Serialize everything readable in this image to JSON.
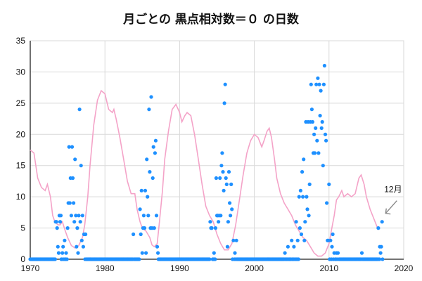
{
  "chart_data": {
    "type": "scatter",
    "title": "月ごとの 黒点相対数＝０ の日数",
    "xlabel": "",
    "ylabel": "",
    "xlim": [
      1970,
      2020
    ],
    "ylim": [
      0,
      35
    ],
    "xticks": [
      1970,
      1980,
      1990,
      2000,
      2010,
      2020
    ],
    "yticks": [
      0,
      5,
      10,
      15,
      20,
      25,
      30,
      35
    ],
    "grid": true,
    "colors": {
      "points": "#1e90ff",
      "line": "#f4a3c8",
      "grid": "#d9d9d9",
      "annotation": "#888888"
    },
    "annotation": {
      "text": "12月",
      "x": 2017.2,
      "y": 6
    },
    "series": [
      {
        "type": "scatter",
        "points": [
          [
            1973.4,
            6
          ],
          [
            1973.5,
            6
          ],
          [
            1973.6,
            5
          ],
          [
            1973.7,
            2
          ],
          [
            1973.8,
            1
          ],
          [
            1973.9,
            7
          ],
          [
            1974.0,
            6
          ],
          [
            1974.1,
            7
          ],
          [
            1974.3,
            1
          ],
          [
            1974.4,
            2
          ],
          [
            1974.6,
            3
          ],
          [
            1974.8,
            1
          ],
          [
            1975.0,
            5
          ],
          [
            1975.1,
            9
          ],
          [
            1975.2,
            18
          ],
          [
            1975.3,
            9
          ],
          [
            1975.4,
            13
          ],
          [
            1975.5,
            7
          ],
          [
            1975.6,
            18
          ],
          [
            1975.7,
            13
          ],
          [
            1975.8,
            9
          ],
          [
            1975.9,
            6
          ],
          [
            1976.0,
            16
          ],
          [
            1976.1,
            7
          ],
          [
            1976.2,
            2
          ],
          [
            1976.3,
            5
          ],
          [
            1976.4,
            1
          ],
          [
            1976.5,
            7
          ],
          [
            1976.6,
            24
          ],
          [
            1976.7,
            6
          ],
          [
            1976.8,
            15
          ],
          [
            1976.9,
            3
          ],
          [
            1977.0,
            7
          ],
          [
            1977.1,
            2
          ],
          [
            1977.2,
            4
          ],
          [
            1977.4,
            4
          ],
          [
            1983.8,
            4
          ],
          [
            1984.7,
            8
          ],
          [
            1984.8,
            4
          ],
          [
            1984.9,
            11
          ],
          [
            1985.0,
            1
          ],
          [
            1985.1,
            5
          ],
          [
            1985.2,
            7
          ],
          [
            1985.3,
            5
          ],
          [
            1985.4,
            11
          ],
          [
            1985.5,
            1
          ],
          [
            1985.6,
            16
          ],
          [
            1985.7,
            10
          ],
          [
            1985.8,
            7
          ],
          [
            1985.9,
            24
          ],
          [
            1986.0,
            14
          ],
          [
            1986.1,
            5
          ],
          [
            1986.2,
            26
          ],
          [
            1986.3,
            5
          ],
          [
            1986.4,
            13
          ],
          [
            1986.5,
            18
          ],
          [
            1986.6,
            5
          ],
          [
            1986.7,
            17
          ],
          [
            1986.8,
            19
          ],
          [
            1986.9,
            7
          ],
          [
            1987.0,
            2
          ],
          [
            1987.1,
            1
          ],
          [
            1994.1,
            6
          ],
          [
            1994.2,
            5
          ],
          [
            1994.3,
            5
          ],
          [
            1994.6,
            1
          ],
          [
            1994.8,
            5
          ],
          [
            1994.9,
            13
          ],
          [
            1995.0,
            7
          ],
          [
            1995.1,
            7
          ],
          [
            1995.2,
            6
          ],
          [
            1995.3,
            7
          ],
          [
            1995.4,
            13
          ],
          [
            1995.5,
            7
          ],
          [
            1995.6,
            15
          ],
          [
            1995.7,
            17
          ],
          [
            1995.8,
            14
          ],
          [
            1995.9,
            11
          ],
          [
            1996.0,
            25
          ],
          [
            1996.1,
            28
          ],
          [
            1996.2,
            13
          ],
          [
            1996.3,
            12
          ],
          [
            1996.4,
            2
          ],
          [
            1996.5,
            6
          ],
          [
            1996.6,
            14
          ],
          [
            1996.7,
            9
          ],
          [
            1996.8,
            7
          ],
          [
            1996.9,
            12
          ],
          [
            1997.0,
            8
          ],
          [
            1997.2,
            3
          ],
          [
            1997.4,
            1
          ],
          [
            1997.6,
            3
          ],
          [
            2004.1,
            1
          ],
          [
            2004.5,
            2
          ],
          [
            2005.0,
            3
          ],
          [
            2005.3,
            2
          ],
          [
            2005.6,
            6
          ],
          [
            2005.8,
            3
          ],
          [
            2006.0,
            10
          ],
          [
            2006.1,
            5
          ],
          [
            2006.2,
            11
          ],
          [
            2006.3,
            4
          ],
          [
            2006.4,
            14
          ],
          [
            2006.5,
            10
          ],
          [
            2006.6,
            16
          ],
          [
            2006.7,
            3
          ],
          [
            2006.8,
            6
          ],
          [
            2006.9,
            22
          ],
          [
            2007.0,
            10
          ],
          [
            2007.1,
            8
          ],
          [
            2007.2,
            22
          ],
          [
            2007.3,
            7
          ],
          [
            2007.4,
            12
          ],
          [
            2007.5,
            22
          ],
          [
            2007.6,
            28
          ],
          [
            2007.7,
            24
          ],
          [
            2007.8,
            22
          ],
          [
            2007.9,
            17
          ],
          [
            2008.0,
            20
          ],
          [
            2008.1,
            17
          ],
          [
            2008.2,
            21
          ],
          [
            2008.3,
            28
          ],
          [
            2008.4,
            19
          ],
          [
            2008.5,
            29
          ],
          [
            2008.6,
            17
          ],
          [
            2008.7,
            28
          ],
          [
            2008.8,
            23
          ],
          [
            2008.9,
            27
          ],
          [
            2009.0,
            21
          ],
          [
            2009.1,
            22
          ],
          [
            2009.2,
            15
          ],
          [
            2009.3,
            28
          ],
          [
            2009.4,
            31
          ],
          [
            2009.5,
            20
          ],
          [
            2009.6,
            19
          ],
          [
            2009.7,
            9
          ],
          [
            2009.8,
            3
          ],
          [
            2009.9,
            3
          ],
          [
            2010.0,
            12
          ],
          [
            2010.2,
            3
          ],
          [
            2010.4,
            2
          ],
          [
            2010.5,
            4
          ],
          [
            2010.7,
            1
          ],
          [
            2011.0,
            1
          ],
          [
            2011.2,
            1
          ],
          [
            2014.4,
            1
          ],
          [
            2016.6,
            5
          ],
          [
            2016.8,
            2
          ],
          [
            2016.9,
            1
          ],
          [
            2017.0,
            2
          ],
          [
            2017.1,
            6
          ]
        ]
      },
      {
        "type": "line",
        "points": [
          [
            1970.0,
            17.5
          ],
          [
            1970.5,
            17.0
          ],
          [
            1971.0,
            13.0
          ],
          [
            1971.5,
            11.5
          ],
          [
            1972.0,
            11.0
          ],
          [
            1972.3,
            12.0
          ],
          [
            1972.7,
            10.0
          ],
          [
            1973.0,
            7.0
          ],
          [
            1973.3,
            6.0
          ],
          [
            1973.7,
            5.5
          ],
          [
            1974.0,
            5.5
          ],
          [
            1974.3,
            6.0
          ],
          [
            1974.7,
            4.5
          ],
          [
            1975.0,
            3.5
          ],
          [
            1975.5,
            2.2
          ],
          [
            1976.0,
            1.8
          ],
          [
            1976.5,
            2.2
          ],
          [
            1977.0,
            3.5
          ],
          [
            1977.3,
            5.5
          ],
          [
            1977.7,
            10.0
          ],
          [
            1978.0,
            15.0
          ],
          [
            1978.5,
            21.5
          ],
          [
            1979.0,
            25.5
          ],
          [
            1979.5,
            27.0
          ],
          [
            1980.0,
            26.5
          ],
          [
            1980.5,
            24.0
          ],
          [
            1981.0,
            23.5
          ],
          [
            1981.2,
            24.0
          ],
          [
            1981.5,
            22.5
          ],
          [
            1982.0,
            19.5
          ],
          [
            1982.5,
            16.0
          ],
          [
            1983.0,
            12.5
          ],
          [
            1983.5,
            10.5
          ],
          [
            1984.0,
            10.5
          ],
          [
            1984.3,
            8.0
          ],
          [
            1984.7,
            6.0
          ],
          [
            1985.0,
            5.0
          ],
          [
            1985.5,
            4.5
          ],
          [
            1986.0,
            3.5
          ],
          [
            1986.3,
            2.3
          ],
          [
            1986.6,
            2.0
          ],
          [
            1987.0,
            2.5
          ],
          [
            1987.3,
            6.0
          ],
          [
            1987.7,
            11.0
          ],
          [
            1988.0,
            16.0
          ],
          [
            1988.5,
            20.5
          ],
          [
            1989.0,
            24.0
          ],
          [
            1989.5,
            24.8
          ],
          [
            1990.0,
            23.5
          ],
          [
            1990.3,
            22.0
          ],
          [
            1990.7,
            23.0
          ],
          [
            1991.0,
            23.5
          ],
          [
            1991.5,
            23.0
          ],
          [
            1992.0,
            20.0
          ],
          [
            1992.5,
            16.0
          ],
          [
            1993.0,
            12.0
          ],
          [
            1993.5,
            8.5
          ],
          [
            1994.0,
            7.0
          ],
          [
            1994.5,
            6.0
          ],
          [
            1995.0,
            4.0
          ],
          [
            1995.5,
            2.5
          ],
          [
            1996.0,
            1.5
          ],
          [
            1996.5,
            1.5
          ],
          [
            1997.0,
            2.5
          ],
          [
            1997.5,
            5.5
          ],
          [
            1998.0,
            9.5
          ],
          [
            1998.5,
            13.5
          ],
          [
            1999.0,
            17.0
          ],
          [
            1999.5,
            19.0
          ],
          [
            2000.0,
            20.0
          ],
          [
            2000.5,
            19.5
          ],
          [
            2001.0,
            18.0
          ],
          [
            2001.3,
            19.0
          ],
          [
            2001.7,
            20.5
          ],
          [
            2002.0,
            21.0
          ],
          [
            2002.3,
            19.5
          ],
          [
            2002.7,
            16.0
          ],
          [
            2003.0,
            13.0
          ],
          [
            2003.5,
            10.5
          ],
          [
            2004.0,
            9.0
          ],
          [
            2004.5,
            8.0
          ],
          [
            2005.0,
            7.0
          ],
          [
            2005.5,
            5.5
          ],
          [
            2006.0,
            4.5
          ],
          [
            2006.5,
            3.5
          ],
          [
            2007.0,
            3.0
          ],
          [
            2007.5,
            2.0
          ],
          [
            2008.0,
            1.0
          ],
          [
            2008.5,
            0.5
          ],
          [
            2009.0,
            0.5
          ],
          [
            2009.5,
            1.0
          ],
          [
            2010.0,
            2.5
          ],
          [
            2010.3,
            4.5
          ],
          [
            2010.7,
            7.0
          ],
          [
            2011.0,
            9.5
          ],
          [
            2011.3,
            10.0
          ],
          [
            2011.7,
            11.0
          ],
          [
            2012.0,
            10.0
          ],
          [
            2012.5,
            10.5
          ],
          [
            2013.0,
            10.0
          ],
          [
            2013.5,
            10.5
          ],
          [
            2014.0,
            13.0
          ],
          [
            2014.3,
            13.5
          ],
          [
            2014.7,
            12.0
          ],
          [
            2015.0,
            10.0
          ],
          [
            2015.5,
            8.0
          ],
          [
            2016.0,
            6.5
          ],
          [
            2016.5,
            5.0
          ]
        ]
      }
    ]
  }
}
